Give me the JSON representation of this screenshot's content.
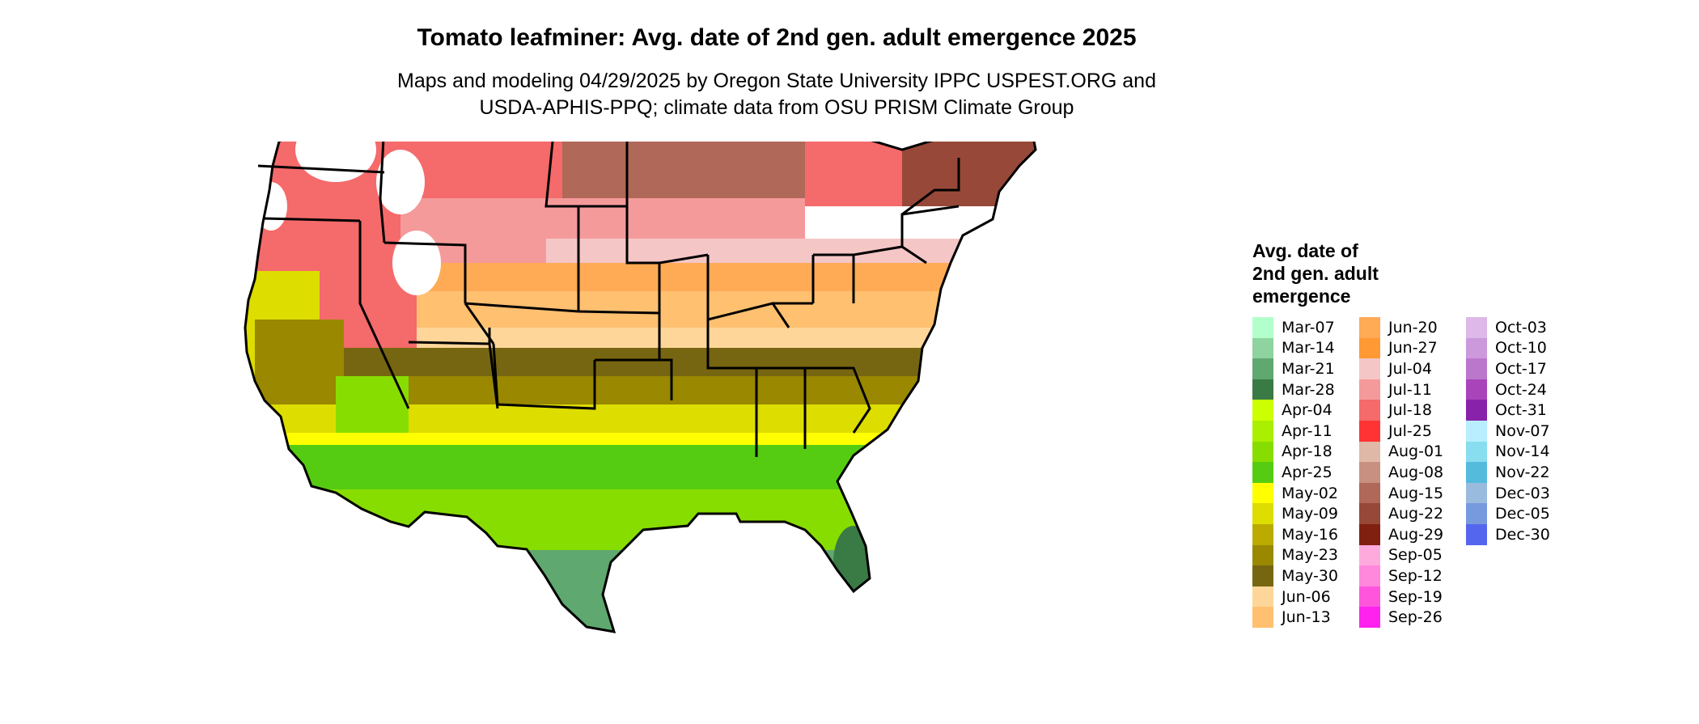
{
  "title": "Tomato leafminer: Avg. date of 2nd gen. adult emergence 2025",
  "subtitle_lines": [
    "Maps and modeling 04/29/2025 by Oregon State University IPPC USPEST.ORG and",
    "USDA-APHIS-PPQ; climate data from OSU PRISM Climate Group"
  ],
  "legend": {
    "title_lines": [
      "Avg. date of",
      "2nd gen. adult",
      "emergence"
    ],
    "columns": [
      [
        {
          "label": "Mar-07",
          "color": "#b3ffcc"
        },
        {
          "label": "Mar-14",
          "color": "#8fd3a0"
        },
        {
          "label": "Mar-21",
          "color": "#5fa870"
        },
        {
          "label": "Mar-28",
          "color": "#3a7a45"
        },
        {
          "label": "Apr-04",
          "color": "#ccff00"
        },
        {
          "label": "Apr-11",
          "color": "#aaee00"
        },
        {
          "label": "Apr-18",
          "color": "#88dd00"
        },
        {
          "label": "Apr-25",
          "color": "#55cc11"
        },
        {
          "label": "May-02",
          "color": "#ffff00"
        },
        {
          "label": "May-09",
          "color": "#dddd00"
        },
        {
          "label": "May-16",
          "color": "#bbaa00"
        },
        {
          "label": "May-23",
          "color": "#998800"
        },
        {
          "label": "May-30",
          "color": "#776611"
        },
        {
          "label": "Jun-06",
          "color": "#ffd699"
        },
        {
          "label": "Jun-13",
          "color": "#ffc070"
        }
      ],
      [
        {
          "label": "Jun-20",
          "color": "#ffaa55"
        },
        {
          "label": "Jun-27",
          "color": "#ff9933"
        },
        {
          "label": "Jul-04",
          "color": "#f5c6c6"
        },
        {
          "label": "Jul-11",
          "color": "#f59a9a"
        },
        {
          "label": "Jul-18",
          "color": "#f56a6a"
        },
        {
          "label": "Jul-25",
          "color": "#ff3333"
        },
        {
          "label": "Aug-01",
          "color": "#e0b8a8"
        },
        {
          "label": "Aug-08",
          "color": "#c89080"
        },
        {
          "label": "Aug-15",
          "color": "#b06858"
        },
        {
          "label": "Aug-22",
          "color": "#984838"
        },
        {
          "label": "Aug-29",
          "color": "#802010"
        },
        {
          "label": "Sep-05",
          "color": "#ffaadd"
        },
        {
          "label": "Sep-12",
          "color": "#ff88dd"
        },
        {
          "label": "Sep-19",
          "color": "#ff55dd"
        },
        {
          "label": "Sep-26",
          "color": "#ff22ee"
        }
      ],
      [
        {
          "label": "Oct-03",
          "color": "#ddb8e8"
        },
        {
          "label": "Oct-10",
          "color": "#cc99dd"
        },
        {
          "label": "Oct-17",
          "color": "#bb77cc"
        },
        {
          "label": "Oct-24",
          "color": "#aa44bb"
        },
        {
          "label": "Oct-31",
          "color": "#8822aa"
        },
        {
          "label": "Nov-07",
          "color": "#b8eeff"
        },
        {
          "label": "Nov-14",
          "color": "#88ddee"
        },
        {
          "label": "Nov-22",
          "color": "#55bbdd"
        },
        {
          "label": "Dec-03",
          "color": "#99bbdd"
        },
        {
          "label": "Dec-05",
          "color": "#7799dd"
        },
        {
          "label": "Dec-30",
          "color": "#5566ee"
        }
      ]
    ]
  },
  "map": {
    "outline_color": "#000000",
    "unmodeled_color": "#ffffff"
  }
}
